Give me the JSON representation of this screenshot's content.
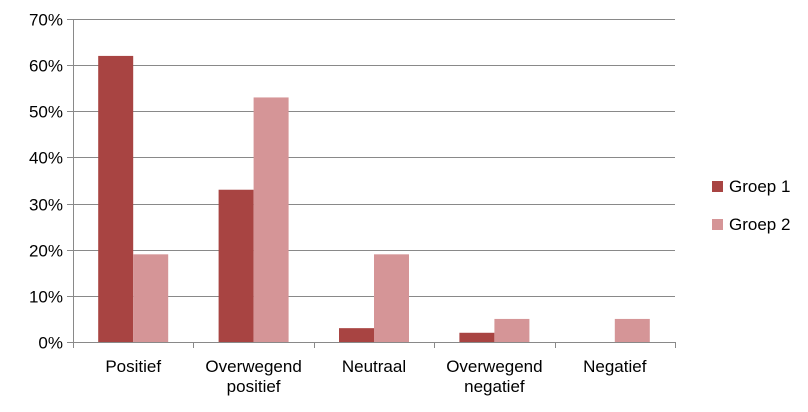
{
  "chart_data": {
    "type": "bar",
    "title": "",
    "xlabel": "",
    "ylabel": "",
    "ylim": [
      0,
      70
    ],
    "yticks": [
      0,
      10,
      20,
      30,
      40,
      50,
      60,
      70
    ],
    "ytick_labels": [
      "0%",
      "10%",
      "20%",
      "30%",
      "40%",
      "50%",
      "60%",
      "70%"
    ],
    "grid": true,
    "legend_position": "right",
    "categories": [
      [
        "Positief"
      ],
      [
        "Overwegend",
        "positief"
      ],
      [
        "Neutraal"
      ],
      [
        "Overwegend",
        "negatief"
      ],
      [
        "Negatief"
      ]
    ],
    "series": [
      {
        "name": "Groep 1",
        "color": "#a84442",
        "values": [
          62,
          33,
          3,
          2,
          0
        ]
      },
      {
        "name": "Groep 2",
        "color": "#d59597",
        "values": [
          19,
          53,
          19,
          5,
          5
        ]
      }
    ],
    "gridline_color": "#898989",
    "axis_color": "#898989"
  }
}
